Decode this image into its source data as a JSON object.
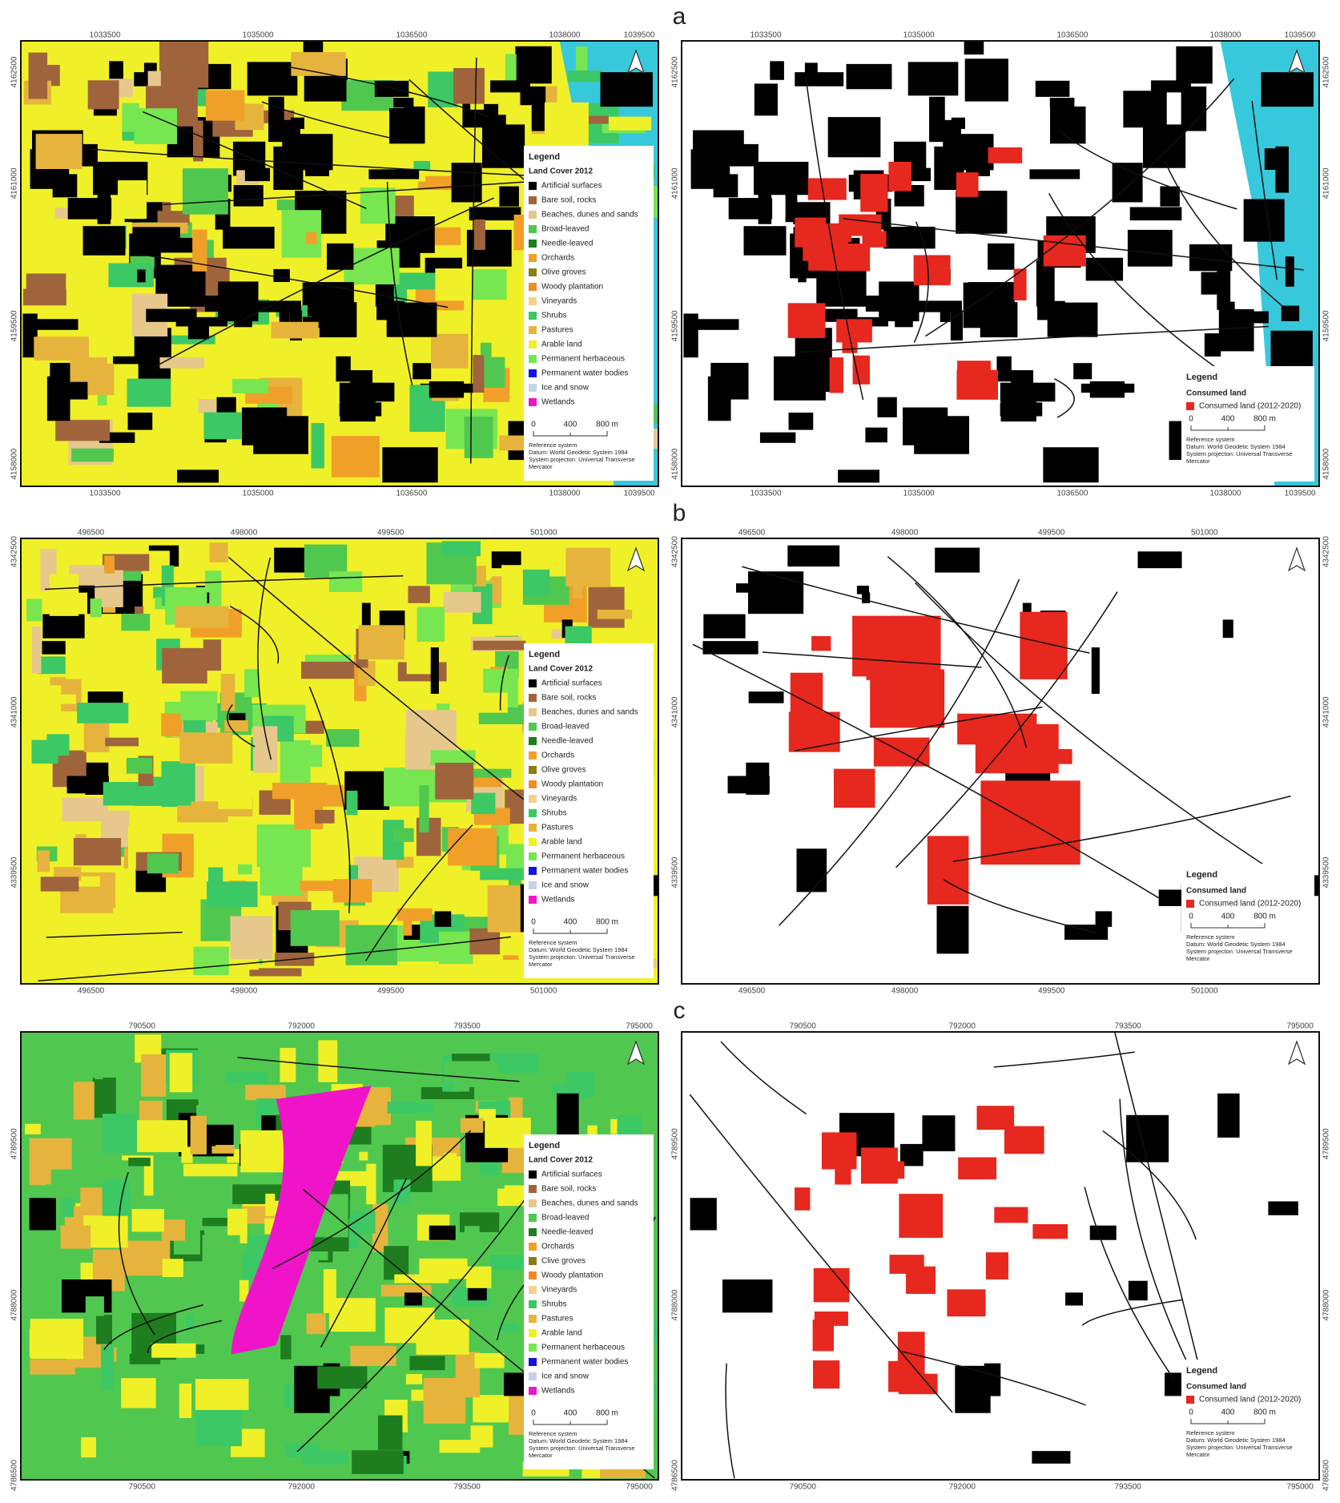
{
  "panels": [
    {
      "label": "a",
      "x_ticks": [
        "1033500",
        "1035000",
        "1036500",
        "1038000",
        "1039500"
      ],
      "y_ticks": [
        "4162500",
        "4161000",
        "4159500",
        "4158000"
      ],
      "land_cover_legend": {
        "title": "Legend",
        "subtitle": "Land Cover 2012",
        "items": [
          "Artificial surfaces",
          "Bare soil, rocks",
          "Beaches, dunes and sands",
          "Broad-leaved",
          "Needle-leaved",
          "Orchards",
          "Olive groves",
          "Woody plantation",
          "Vineyards",
          "Shrubs",
          "Pastures",
          "Arable land",
          "Permanent herbaceous",
          "Permanent water bodies",
          "Ice and snow",
          "Wetlands"
        ]
      }
    },
    {
      "label": "b",
      "x_ticks": [
        "496500",
        "498000",
        "499500",
        "501000"
      ],
      "y_ticks": [
        "4342500",
        "4341000",
        "4339500"
      ],
      "land_cover_legend": {
        "title": "Legend",
        "subtitle": "Land Cover 2012",
        "items": [
          "Artificial surfaces",
          "Bare soil, rocks",
          "Beaches, dunes and sands",
          "Broad-leaved",
          "Needle-leaved",
          "Orchards",
          "Olive groves",
          "Woody plantation",
          "Vineyards",
          "Shrubs",
          "Pastures",
          "Arable land",
          "Permanent herbaceous",
          "Permanent water bodies",
          "Ice and snow",
          "Wetlands"
        ]
      }
    },
    {
      "label": "c",
      "x_ticks": [
        "790500",
        "792000",
        "793500",
        "795000"
      ],
      "y_ticks": [
        "4789500",
        "4788000",
        "4786500"
      ],
      "land_cover_legend": {
        "title": "Legend",
        "subtitle": "Land Cover 2012",
        "items": [
          "Artificial surfaces",
          "Bare soil, rocks",
          "Beaches, dunes and sands",
          "Broad-leaved",
          "Needle-leaved",
          "Orchards",
          "Clive groves",
          "Woody plantation",
          "Vineyards",
          "Shrubs",
          "Pastures",
          "Arable land",
          "Permanent herbaceous",
          "Permanent water bodies",
          "Ice and snow",
          "Wetlands"
        ]
      }
    }
  ],
  "land_cover_colors": [
    "#000000",
    "#a0643c",
    "#e6c88c",
    "#50c850",
    "#1e7d1e",
    "#f0a028",
    "#8c7d14",
    "#f08c28",
    "#f5d28c",
    "#3cc864",
    "#e6b43c",
    "#f0f028",
    "#78e650",
    "#1414dc",
    "#c8d2e6",
    "#f014c8"
  ],
  "consumed_legend": {
    "title": "Legend",
    "subtitle": "Consumed land",
    "item": "Consumed land (2012-2020)",
    "color": "#e6281e"
  },
  "scale_bar": [
    "0",
    "400",
    "800 m"
  ],
  "reference": [
    "Reference system",
    "Datum: World Geodetic System 1984",
    "System projecton: Universal Transverse",
    "Mercator"
  ]
}
